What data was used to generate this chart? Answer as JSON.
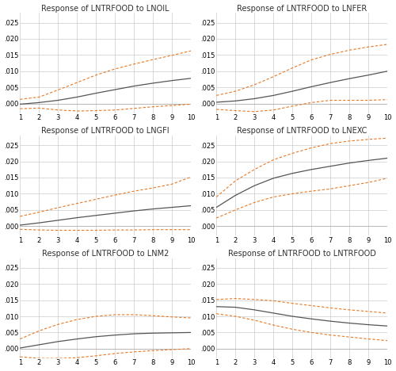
{
  "panels": [
    {
      "title": "Response of LNTRFOOD to LNOIL",
      "center_vals": [
        -0.0002,
        0.0003,
        0.001,
        0.002,
        0.0032,
        0.0043,
        0.0054,
        0.0063,
        0.0071,
        0.0078
      ],
      "upper_vals": [
        0.0013,
        0.002,
        0.0042,
        0.0065,
        0.0088,
        0.0107,
        0.0122,
        0.0136,
        0.0149,
        0.0163
      ],
      "lower_vals": [
        -0.0016,
        -0.0014,
        -0.002,
        -0.0023,
        -0.0022,
        -0.002,
        -0.0015,
        -0.001,
        -0.0006,
        -0.0002
      ]
    },
    {
      "title": "Response of LNTRFOOD to LNFER",
      "center_vals": [
        0.0004,
        0.0008,
        0.0015,
        0.0025,
        0.0038,
        0.0052,
        0.0065,
        0.0077,
        0.0088,
        0.01
      ],
      "upper_vals": [
        0.0025,
        0.0038,
        0.0058,
        0.0083,
        0.011,
        0.0135,
        0.0152,
        0.0165,
        0.0175,
        0.0183
      ],
      "lower_vals": [
        -0.0018,
        -0.0022,
        -0.0025,
        -0.002,
        -0.0008,
        0.0003,
        0.001,
        0.001,
        0.001,
        0.0012
      ]
    },
    {
      "title": "Response of LNTRFOOD to LNGFI",
      "center_vals": [
        0.0003,
        0.001,
        0.0018,
        0.0026,
        0.0033,
        0.004,
        0.0047,
        0.0053,
        0.0058,
        0.0063
      ],
      "upper_vals": [
        0.003,
        0.0043,
        0.0057,
        0.007,
        0.0083,
        0.0096,
        0.0108,
        0.0118,
        0.013,
        0.0152
      ],
      "lower_vals": [
        -0.001,
        -0.0012,
        -0.0013,
        -0.0013,
        -0.0013,
        -0.0012,
        -0.0012,
        -0.0011,
        -0.0011,
        -0.0011
      ]
    },
    {
      "title": "Response of LNTRFOOD to LNEXC",
      "center_vals": [
        0.0058,
        0.0095,
        0.0125,
        0.0148,
        0.0163,
        0.0175,
        0.0185,
        0.0195,
        0.0203,
        0.021
      ],
      "upper_vals": [
        0.009,
        0.014,
        0.0175,
        0.0205,
        0.0225,
        0.0242,
        0.0255,
        0.0263,
        0.0268,
        0.0272
      ],
      "lower_vals": [
        0.0025,
        0.005,
        0.0073,
        0.009,
        0.01,
        0.0108,
        0.0115,
        0.0125,
        0.0135,
        0.0148
      ]
    },
    {
      "title": "Response of LNTRFOOD to LNM2",
      "center_vals": [
        0.0002,
        0.0012,
        0.0022,
        0.003,
        0.0037,
        0.0042,
        0.0046,
        0.0048,
        0.0049,
        0.005
      ],
      "upper_vals": [
        0.003,
        0.0055,
        0.0075,
        0.009,
        0.01,
        0.0105,
        0.0105,
        0.0102,
        0.0098,
        0.0095
      ],
      "lower_vals": [
        -0.0025,
        -0.003,
        -0.003,
        -0.0028,
        -0.0022,
        -0.0015,
        -0.001,
        -0.0006,
        -0.0003,
        0.0
      ]
    },
    {
      "title": "Response of LNTRFOOD to LNTRFOOD",
      "center_vals": [
        0.013,
        0.0128,
        0.012,
        0.011,
        0.01,
        0.0092,
        0.0085,
        0.0079,
        0.0074,
        0.007
      ],
      "upper_vals": [
        0.0152,
        0.0155,
        0.0152,
        0.0148,
        0.014,
        0.0133,
        0.0126,
        0.012,
        0.0115,
        0.011
      ],
      "lower_vals": [
        0.0108,
        0.01,
        0.0088,
        0.0073,
        0.006,
        0.005,
        0.0042,
        0.0036,
        0.003,
        0.0025
      ]
    }
  ],
  "x": [
    1,
    2,
    3,
    4,
    5,
    6,
    7,
    8,
    9,
    10
  ],
  "line_color": "#555555",
  "dash_color": "#E87722",
  "bg_color": "#ffffff",
  "grid_color": "#cccccc",
  "ylim": [
    -0.003,
    0.028
  ],
  "yticks": [
    0.0,
    0.005,
    0.01,
    0.015,
    0.02,
    0.025
  ],
  "xticks": [
    1,
    2,
    3,
    4,
    5,
    6,
    7,
    8,
    9,
    10
  ],
  "title_fontsize": 7.0,
  "tick_fontsize": 6.0
}
